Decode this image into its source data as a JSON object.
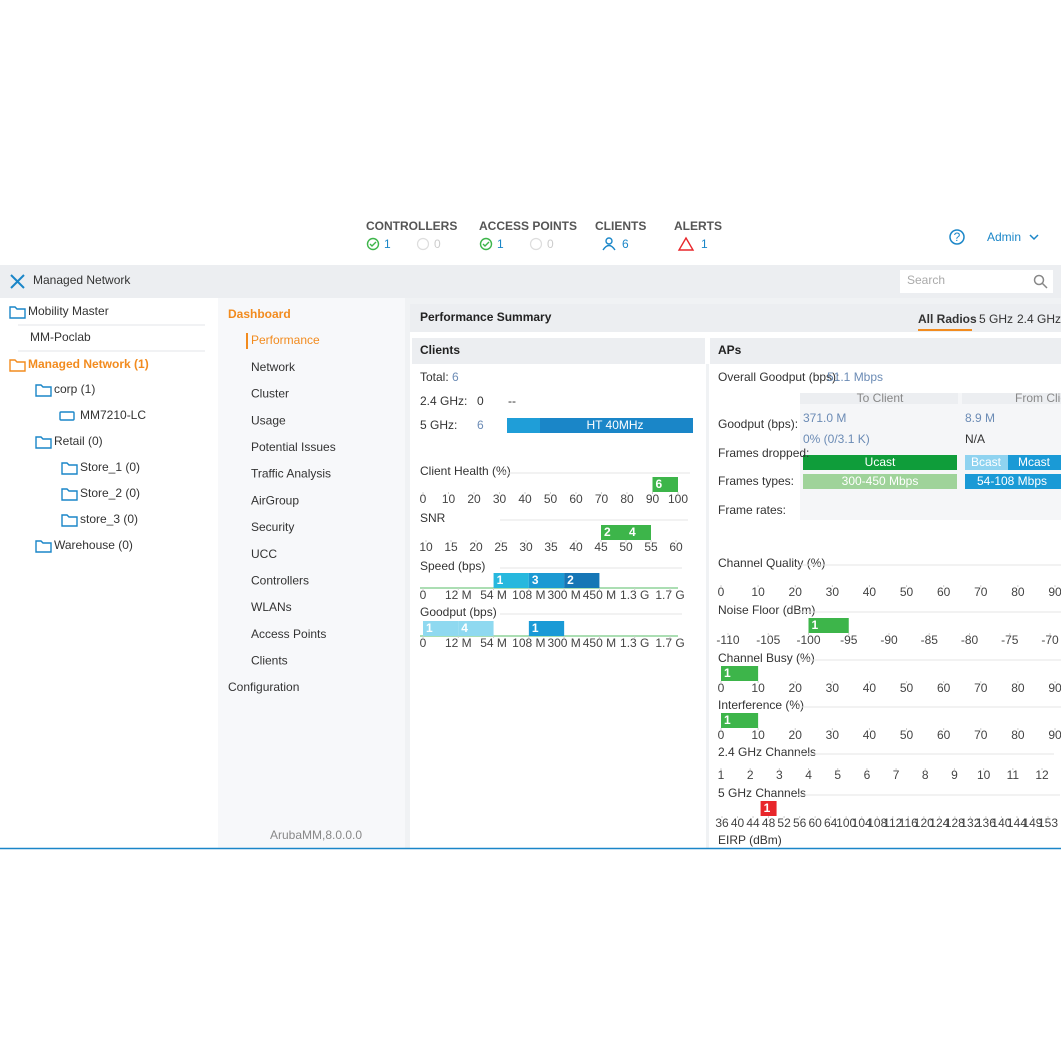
{
  "header": {
    "stats": [
      {
        "label": "CONTROLLERS",
        "ok": 1,
        "off": 0
      },
      {
        "label": "ACCESS POINTS",
        "ok": 1,
        "off": 0
      },
      {
        "label": "CLIENTS",
        "count": 6
      },
      {
        "label": "ALERTS",
        "count": 1
      }
    ],
    "user": "Admin"
  },
  "toolbar": {
    "title": "Managed Network",
    "search": "Search"
  },
  "tree": [
    "Mobility Master",
    "MM-Poclab",
    "Managed Network (1)",
    "corp (1)",
    "MM7210-LC",
    "Retail (0)",
    "Store_1 (0)",
    "Store_2 (0)",
    "store_3 (0)",
    "Warehouse (0)"
  ],
  "nav": {
    "section": "Dashboard",
    "items": [
      "Performance",
      "Network",
      "Cluster",
      "Usage",
      "Potential Issues",
      "Traffic Analysis",
      "AirGroup",
      "Security",
      "UCC",
      "Controllers",
      "WLANs",
      "Access Points",
      "Clients"
    ],
    "other": "Configuration",
    "version": "ArubaMM,8.0.0.0"
  },
  "summary": {
    "title": "Performance Summary",
    "tabs": [
      "All Radios",
      "5 GHz",
      "2.4 GHz"
    ]
  },
  "clients": {
    "title": "Clients",
    "total_label": "Total:",
    "total": 6,
    "g24_label": "2.4 GHz:",
    "g24": 0,
    "g24_mode": "--",
    "g5_label": "5 GHz:",
    "g5": 6,
    "g5_mode": "HT 40MHz",
    "histograms": [
      {
        "title": "Client Health (%)",
        "ticks": [
          0,
          10,
          20,
          30,
          40,
          50,
          60,
          70,
          80,
          90,
          100
        ],
        "counts": [
          null,
          null,
          null,
          null,
          null,
          null,
          null,
          null,
          null,
          6
        ],
        "color": "#3db54a"
      },
      {
        "title": "SNR",
        "ticks": [
          10,
          15,
          20,
          25,
          30,
          35,
          40,
          45,
          50,
          55,
          60
        ],
        "counts": [
          null,
          null,
          null,
          null,
          null,
          null,
          null,
          2,
          4,
          null
        ],
        "color": "#3db54a"
      },
      {
        "title": "Speed (bps)",
        "ticks": [
          "0",
          "12 M",
          "54 M",
          "108 M",
          "300 M",
          "450 M",
          "1.3 G",
          "1.7 G"
        ],
        "counts": [
          null,
          null,
          1,
          3,
          2,
          null,
          null
        ],
        "colors": [
          null,
          null,
          "#27b8de",
          "#1c9ad3",
          "#1676b6",
          null,
          null
        ]
      },
      {
        "title": "Goodput (bps)",
        "ticks": [
          "0",
          "12 M",
          "54 M",
          "108 M",
          "300 M",
          "450 M",
          "1.3 G",
          "1.7 G"
        ],
        "counts": [
          1,
          4,
          null,
          1,
          null,
          null,
          null
        ],
        "colors": [
          "#8fd9f0",
          "#8fd9f0",
          null,
          "#1a9ad6",
          null,
          null,
          null
        ]
      }
    ]
  },
  "aps": {
    "title": "APs",
    "overall_label": "Overall Goodput (bps):",
    "overall": "51.1 Mbps",
    "columns": [
      "To Client",
      "From Client"
    ],
    "row_labels": [
      "Goodput (bps):",
      "Frames dropped:",
      "Frames types:",
      "Frame rates:"
    ],
    "to_client": {
      "goodput": "371.0 M",
      "dropped": "0% (0/3.1 K)",
      "types": "Ucast",
      "rates": "300-450 Mbps"
    },
    "from_client": {
      "goodput": "8.9 M",
      "dropped": "N/A",
      "types": [
        "Bcast",
        "Mcast"
      ],
      "rates": "54-108 Mbps"
    },
    "histograms": [
      {
        "title": "Channel Quality (%)",
        "ticks": [
          0,
          10,
          20,
          30,
          40,
          50,
          60,
          70,
          80,
          90
        ]
      },
      {
        "title": "Noise Floor (dBm)",
        "ticks": [
          -110,
          -105,
          -100,
          -95,
          -90,
          -85,
          -80,
          -75,
          -70
        ],
        "counts": [
          null,
          null,
          1,
          null,
          null,
          null,
          null,
          null
        ],
        "color": "#3db54a"
      },
      {
        "title": "Channel Busy (%)",
        "ticks": [
          0,
          10,
          20,
          30,
          40,
          50,
          60,
          70,
          80,
          90
        ],
        "counts": [
          1,
          null,
          null,
          null,
          null,
          null,
          null,
          null,
          null
        ],
        "color": "#3db54a"
      },
      {
        "title": "Interference (%)",
        "ticks": [
          0,
          10,
          20,
          30,
          40,
          50,
          60,
          70,
          80,
          90
        ],
        "counts": [
          1,
          null,
          null,
          null,
          null,
          null,
          null,
          null,
          null
        ],
        "color": "#3db54a"
      },
      {
        "title": "2.4 GHz Channels",
        "ticks": [
          1,
          2,
          3,
          4,
          5,
          6,
          7,
          8,
          9,
          10,
          11,
          12
        ]
      },
      {
        "title": "5 GHz Channels",
        "ticks": [
          36,
          40,
          44,
          48,
          52,
          56,
          60,
          64,
          100,
          104,
          108,
          112,
          116,
          120,
          124,
          128,
          132,
          136,
          140,
          144,
          149,
          153
        ],
        "counts": [
          null,
          null,
          null,
          1,
          null,
          null,
          null,
          null,
          null,
          null,
          null,
          null,
          null,
          null,
          null,
          null,
          null,
          null,
          null,
          null,
          null,
          null
        ],
        "color": "#e8262b"
      },
      {
        "title": "EIRP (dBm)"
      }
    ]
  }
}
